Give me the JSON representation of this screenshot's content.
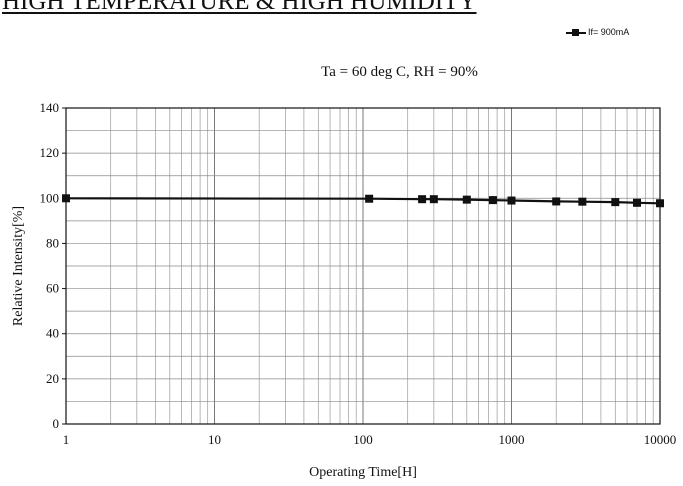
{
  "chart_data": {
    "type": "line",
    "title": "HIGH TEMPERATURE & HIGH HUMIDITY",
    "subtitle": "Ta = 60 deg C, RH = 90%",
    "xlabel": "Operating Time[H]",
    "ylabel": "Relative Intensity[%]",
    "x_scale": "log",
    "xlim": [
      1,
      10000
    ],
    "ylim": [
      0,
      140
    ],
    "x_ticks": [
      "1",
      "10",
      "100",
      "1000",
      "10000"
    ],
    "y_ticks": [
      "0",
      "20",
      "40",
      "60",
      "80",
      "100",
      "120",
      "140"
    ],
    "grid": true,
    "legend_position": "top-right",
    "series": [
      {
        "name": "If= 900mA",
        "color": "#111111",
        "marker": "square",
        "x": [
          1,
          110,
          250,
          300,
          500,
          750,
          1000,
          2000,
          3000,
          5000,
          7000,
          10000
        ],
        "y": [
          100,
          99.8,
          99.6,
          99.6,
          99.4,
          99.2,
          99.0,
          98.6,
          98.5,
          98.3,
          98.0,
          97.8
        ]
      }
    ]
  }
}
